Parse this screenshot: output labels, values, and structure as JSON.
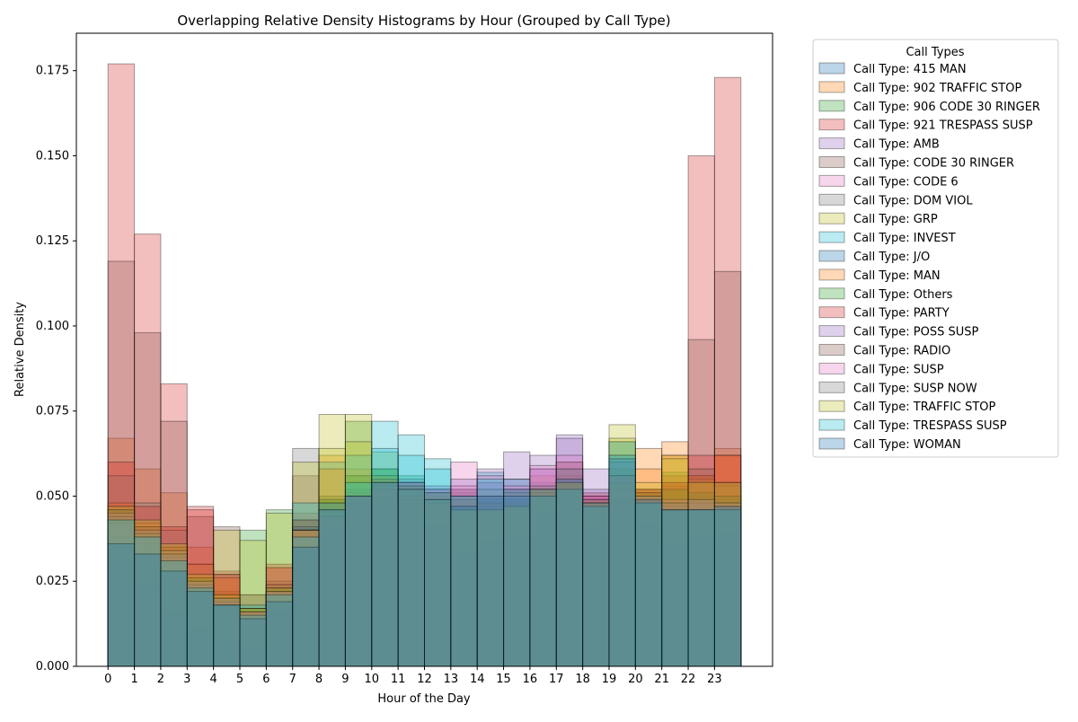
{
  "chart_data": {
    "type": "bar",
    "title": "Overlapping Relative Density Histograms by Hour (Grouped by Call Type)",
    "xlabel": "Hour of the Day",
    "ylabel": "Relative Density",
    "x_ticks": [
      "0",
      "1",
      "2",
      "3",
      "4",
      "5",
      "6",
      "7",
      "8",
      "9",
      "10",
      "11",
      "12",
      "13",
      "14",
      "15",
      "16",
      "17",
      "18",
      "19",
      "20",
      "21",
      "22",
      "23"
    ],
    "xlim": [
      -1.2,
      25.2
    ],
    "ylim": [
      0,
      0.186
    ],
    "y_ticks": [
      "0.000",
      "0.025",
      "0.050",
      "0.075",
      "0.100",
      "0.125",
      "0.150",
      "0.175"
    ],
    "y_tick_values": [
      0,
      0.025,
      0.05,
      0.075,
      0.1,
      0.125,
      0.15,
      0.175
    ],
    "grid": false,
    "legend": {
      "title": "Call Types",
      "position": "outside-right"
    },
    "series": [
      {
        "name": "Call Type: 415 MAN",
        "color": "#1f77b4",
        "values": [
          0.034,
          0.032,
          0.025,
          0.02,
          0.017,
          0.015,
          0.02,
          0.03,
          0.042,
          0.05,
          0.056,
          0.052,
          0.048,
          0.046,
          0.05,
          0.052,
          0.054,
          0.058,
          0.05,
          0.066,
          0.05,
          0.048,
          0.046,
          0.045
        ]
      },
      {
        "name": "Call Type: 902 TRAFFIC STOP",
        "color": "#ff7f0e",
        "values": [
          0.067,
          0.058,
          0.051,
          0.035,
          0.022,
          0.016,
          0.021,
          0.035,
          0.062,
          0.058,
          0.052,
          0.05,
          0.047,
          0.044,
          0.047,
          0.048,
          0.056,
          0.054,
          0.047,
          0.058,
          0.064,
          0.066,
          0.056,
          0.064
        ]
      },
      {
        "name": "Call Type: 906 CODE 30 RINGER",
        "color": "#2ca02c",
        "values": [
          0.045,
          0.04,
          0.035,
          0.025,
          0.022,
          0.04,
          0.046,
          0.043,
          0.05,
          0.072,
          0.058,
          0.056,
          0.052,
          0.05,
          0.048,
          0.047,
          0.05,
          0.055,
          0.047,
          0.058,
          0.052,
          0.057,
          0.046,
          0.044
        ]
      },
      {
        "name": "Call Type: 921 TRESPASS SUSP",
        "color": "#d62728",
        "values": [
          0.177,
          0.127,
          0.083,
          0.047,
          0.028,
          0.016,
          0.03,
          0.045,
          0.048,
          0.05,
          0.048,
          0.044,
          0.042,
          0.048,
          0.05,
          0.052,
          0.05,
          0.052,
          0.05,
          0.055,
          0.052,
          0.056,
          0.15,
          0.173
        ]
      },
      {
        "name": "Call Type: AMB",
        "color": "#9467bd",
        "values": [
          0.047,
          0.041,
          0.034,
          0.026,
          0.02,
          0.016,
          0.022,
          0.038,
          0.044,
          0.05,
          0.054,
          0.055,
          0.052,
          0.051,
          0.054,
          0.063,
          0.062,
          0.068,
          0.058,
          0.062,
          0.048,
          0.044,
          0.046,
          0.048
        ]
      },
      {
        "name": "Call Type: CODE 30 RINGER",
        "color": "#8c564b",
        "values": [
          0.119,
          0.098,
          0.072,
          0.044,
          0.041,
          0.021,
          0.022,
          0.056,
          0.05,
          0.052,
          0.055,
          0.053,
          0.05,
          0.046,
          0.044,
          0.046,
          0.052,
          0.056,
          0.048,
          0.05,
          0.051,
          0.053,
          0.096,
          0.116
        ]
      },
      {
        "name": "Call Type: CODE 6",
        "color": "#e377c2",
        "values": [
          0.046,
          0.041,
          0.033,
          0.026,
          0.021,
          0.017,
          0.023,
          0.04,
          0.044,
          0.051,
          0.055,
          0.054,
          0.052,
          0.06,
          0.054,
          0.05,
          0.058,
          0.06,
          0.05,
          0.055,
          0.05,
          0.048,
          0.05,
          0.049
        ]
      },
      {
        "name": "Call Type: DOM VIOL",
        "color": "#7f7f7f",
        "values": [
          0.056,
          0.048,
          0.04,
          0.03,
          0.027,
          0.021,
          0.025,
          0.064,
          0.04,
          0.048,
          0.05,
          0.049,
          0.045,
          0.042,
          0.044,
          0.045,
          0.05,
          0.052,
          0.048,
          0.052,
          0.046,
          0.044,
          0.048,
          0.05
        ]
      },
      {
        "name": "Call Type: GRP",
        "color": "#bcbd22",
        "values": [
          0.043,
          0.039,
          0.034,
          0.026,
          0.04,
          0.037,
          0.045,
          0.06,
          0.074,
          0.074,
          0.063,
          0.053,
          0.05,
          0.047,
          0.045,
          0.046,
          0.052,
          0.054,
          0.047,
          0.071,
          0.051,
          0.062,
          0.055,
          0.053
        ]
      },
      {
        "name": "Call Type: INVEST",
        "color": "#17becf",
        "values": [
          0.038,
          0.036,
          0.03,
          0.024,
          0.02,
          0.018,
          0.024,
          0.048,
          0.06,
          0.062,
          0.072,
          0.068,
          0.061,
          0.052,
          0.057,
          0.055,
          0.05,
          0.053,
          0.048,
          0.066,
          0.048,
          0.046,
          0.048,
          0.047
        ]
      },
      {
        "name": "Call Type: J/O",
        "color": "#1f77b4",
        "values": [
          0.031,
          0.024,
          0.016,
          0.011,
          0.007,
          0.005,
          0.016,
          0.041,
          0.04,
          0.048,
          0.049,
          0.049,
          0.041,
          0.033,
          0.037,
          0.038,
          0.045,
          0.051,
          0.04,
          0.049,
          0.042,
          0.036,
          0.038,
          0.039
        ]
      },
      {
        "name": "Call Type: MAN",
        "color": "#ff7f0e",
        "values": [
          0.048,
          0.042,
          0.035,
          0.03,
          0.026,
          0.017,
          0.024,
          0.04,
          0.058,
          0.05,
          0.052,
          0.05,
          0.048,
          0.046,
          0.048,
          0.047,
          0.05,
          0.052,
          0.049,
          0.052,
          0.058,
          0.062,
          0.056,
          0.062
        ]
      },
      {
        "name": "Call Type: Others",
        "color": "#2ca02c",
        "values": [
          0.046,
          0.04,
          0.034,
          0.026,
          0.02,
          0.017,
          0.023,
          0.04,
          0.049,
          0.056,
          0.058,
          0.054,
          0.051,
          0.049,
          0.049,
          0.048,
          0.051,
          0.054,
          0.048,
          0.054,
          0.05,
          0.052,
          0.051,
          0.05
        ]
      },
      {
        "name": "Call Type: PARTY",
        "color": "#d62728",
        "values": [
          0.06,
          0.047,
          0.041,
          0.046,
          0.027,
          0.016,
          0.029,
          0.04,
          0.044,
          0.05,
          0.052,
          0.05,
          0.048,
          0.052,
          0.05,
          0.052,
          0.05,
          0.054,
          0.051,
          0.054,
          0.052,
          0.054,
          0.062,
          0.062
        ]
      },
      {
        "name": "Call Type: POSS SUSP",
        "color": "#9467bd",
        "values": [
          0.042,
          0.038,
          0.032,
          0.024,
          0.019,
          0.016,
          0.022,
          0.038,
          0.044,
          0.05,
          0.053,
          0.054,
          0.053,
          0.055,
          0.058,
          0.055,
          0.058,
          0.067,
          0.052,
          0.06,
          0.049,
          0.047,
          0.048,
          0.047
        ]
      },
      {
        "name": "Call Type: RADIO",
        "color": "#8c564b",
        "values": [
          0.046,
          0.041,
          0.033,
          0.024,
          0.019,
          0.016,
          0.022,
          0.043,
          0.048,
          0.05,
          0.055,
          0.053,
          0.051,
          0.049,
          0.048,
          0.049,
          0.051,
          0.06,
          0.049,
          0.056,
          0.051,
          0.048,
          0.058,
          0.054
        ]
      },
      {
        "name": "Call Type: SUSP",
        "color": "#e377c2",
        "values": [
          0.045,
          0.04,
          0.034,
          0.025,
          0.02,
          0.016,
          0.022,
          0.04,
          0.046,
          0.05,
          0.054,
          0.054,
          0.052,
          0.053,
          0.056,
          0.053,
          0.059,
          0.062,
          0.05,
          0.056,
          0.05,
          0.049,
          0.049,
          0.048
        ]
      },
      {
        "name": "Call Type: SUSP NOW",
        "color": "#7f7f7f",
        "values": [
          0.044,
          0.039,
          0.033,
          0.025,
          0.02,
          0.016,
          0.022,
          0.04,
          0.046,
          0.05,
          0.054,
          0.053,
          0.051,
          0.05,
          0.052,
          0.051,
          0.053,
          0.058,
          0.049,
          0.056,
          0.05,
          0.048,
          0.049,
          0.048
        ]
      },
      {
        "name": "Call Type: TRAFFIC STOP",
        "color": "#bcbd22",
        "values": [
          0.047,
          0.043,
          0.036,
          0.027,
          0.021,
          0.017,
          0.023,
          0.04,
          0.064,
          0.066,
          0.056,
          0.052,
          0.049,
          0.046,
          0.046,
          0.047,
          0.052,
          0.054,
          0.048,
          0.067,
          0.054,
          0.061,
          0.054,
          0.054
        ]
      },
      {
        "name": "Call Type: TRESPASS SUSP",
        "color": "#17becf",
        "values": [
          0.043,
          0.038,
          0.031,
          0.023,
          0.018,
          0.015,
          0.021,
          0.038,
          0.048,
          0.054,
          0.064,
          0.062,
          0.058,
          0.05,
          0.055,
          0.052,
          0.05,
          0.052,
          0.047,
          0.062,
          0.048,
          0.046,
          0.046,
          0.046
        ]
      },
      {
        "name": "Call Type: WOMAN",
        "color": "#1f77b4",
        "values": [
          0.036,
          0.033,
          0.028,
          0.022,
          0.018,
          0.014,
          0.019,
          0.035,
          0.046,
          0.05,
          0.054,
          0.052,
          0.049,
          0.047,
          0.05,
          0.05,
          0.052,
          0.055,
          0.048,
          0.061,
          0.049,
          0.046,
          0.046,
          0.047
        ]
      }
    ]
  }
}
